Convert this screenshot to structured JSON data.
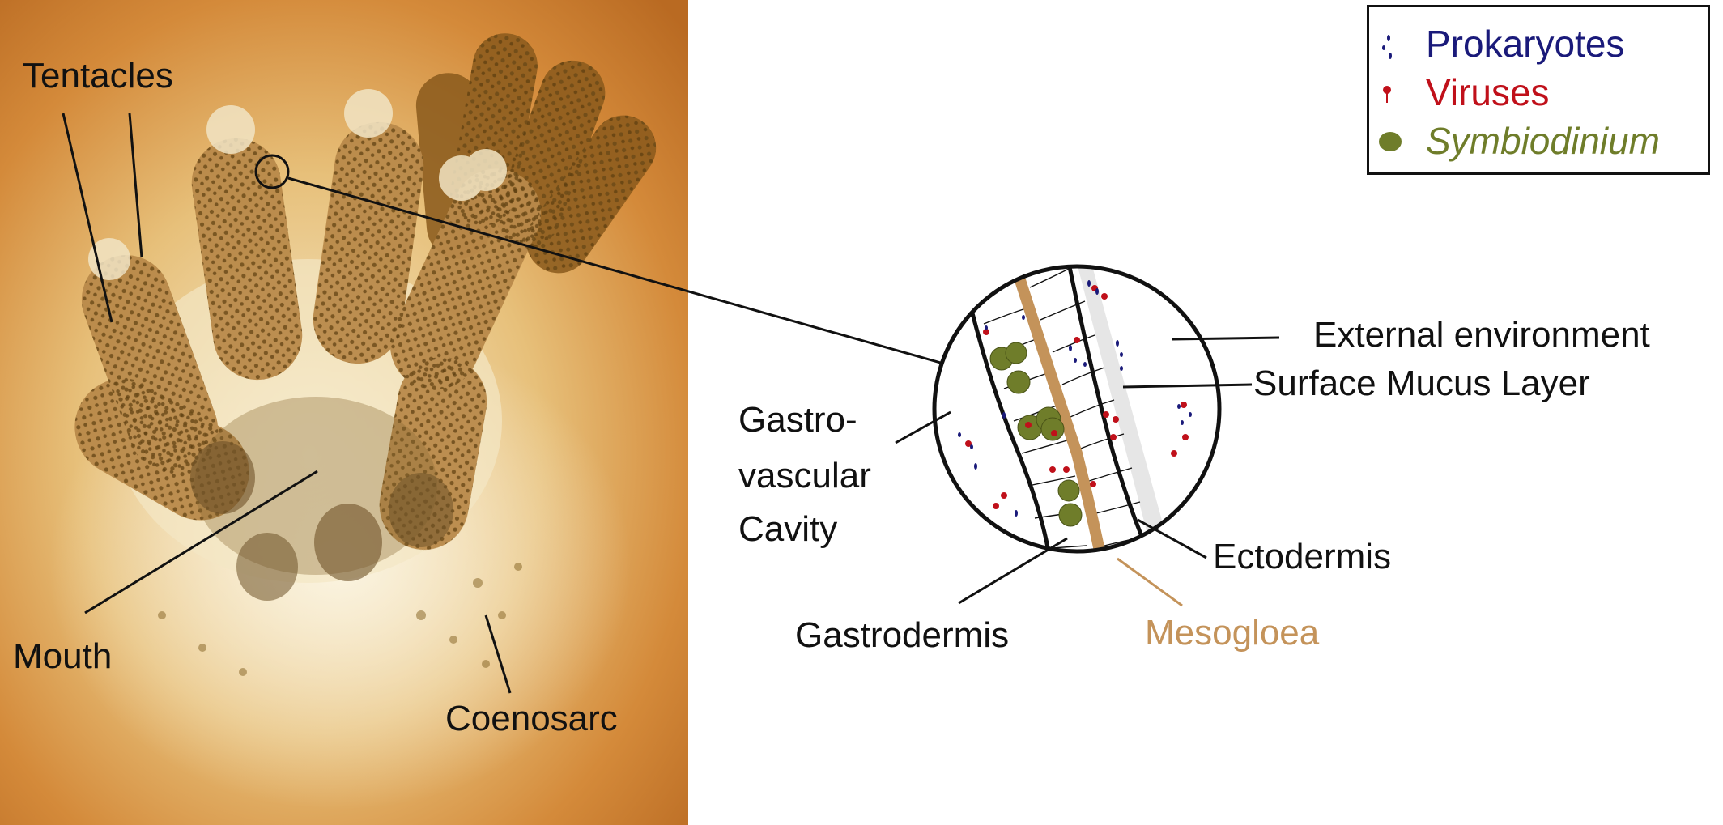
{
  "legend": {
    "items": [
      {
        "label": "Prokaryotes",
        "color": "#1a1a7a",
        "icon": "prokaryote-icon"
      },
      {
        "label": "Viruses",
        "color": "#c0101a",
        "icon": "virus-icon"
      },
      {
        "label": "Symbiodinium",
        "color": "#6f7d2a",
        "icon": "symbiodinium-icon",
        "italic": true
      }
    ]
  },
  "photo_labels": {
    "tentacles": "Tentacles",
    "mouth": "Mouth",
    "coenosarc": "Coenosarc"
  },
  "diagram_labels": {
    "external_environment": "External environment",
    "surface_mucus_layer": "Surface Mucus Layer",
    "gastro_line1": "Gastro-",
    "gastro_line2": "vascular",
    "gastro_line3": "Cavity",
    "ectodermis": "Ectodermis",
    "gastrodermis": "Gastrodermis",
    "mesogloea": "Mesogloea"
  },
  "colors": {
    "mesogloea": "#c4935a",
    "prokaryotes": "#1a1a7a",
    "viruses": "#c0101a",
    "symbiodinium": "#6f7d2a",
    "mucus": "#e6e6e6"
  }
}
